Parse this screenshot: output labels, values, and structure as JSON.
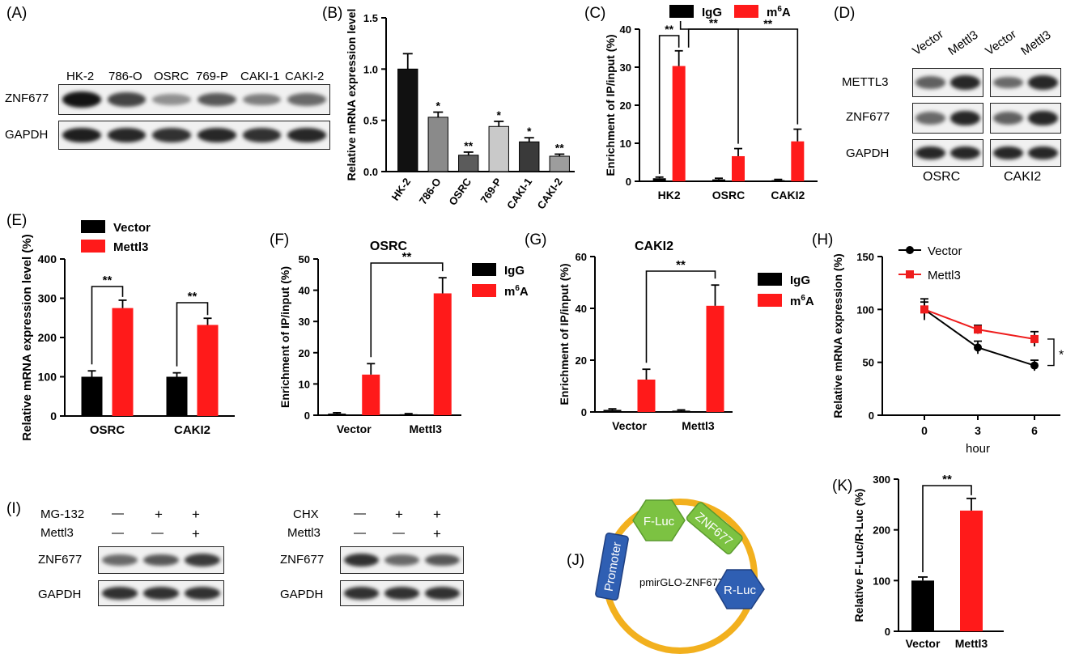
{
  "panels": [
    "(A)",
    "(B)",
    "(C)",
    "(D)",
    "(E)",
    "(F)",
    "(G)",
    "(H)",
    "(I)",
    "(J)",
    "(K)"
  ],
  "panelA": {
    "lanes": [
      "HK-2",
      "786-O",
      "OSRC",
      "769-P",
      "CAKI-1",
      "CAKI-2"
    ],
    "rows": [
      "ZNF677",
      "GAPDH"
    ],
    "znf677_intensity": [
      1.0,
      0.75,
      0.35,
      0.65,
      0.45,
      0.55
    ],
    "gapdh_intensity": [
      0.95,
      0.9,
      0.85,
      0.9,
      0.85,
      0.9
    ]
  },
  "panelD": {
    "lanes": [
      "Vector",
      "Mettl3",
      "Vector",
      "Mettl3"
    ],
    "rows": [
      "METTL3",
      "ZNF677",
      "GAPDH"
    ],
    "cells": [
      "OSRC",
      "CAKI2"
    ],
    "mettl3_intensity": [
      0.6,
      0.9,
      0.55,
      0.9
    ],
    "znf677_intensity": [
      0.55,
      0.9,
      0.6,
      0.9
    ],
    "gapdh_intensity": [
      0.9,
      0.9,
      0.9,
      0.9
    ]
  },
  "panelI": {
    "left_treat": "MG-132",
    "right_treat": "CHX",
    "second_treat": "Mettl3",
    "treat_signs": [
      "—",
      "+",
      "+"
    ],
    "mettl3_signs": [
      "—",
      "—",
      "+"
    ],
    "rows": [
      "ZNF677",
      "GAPDH"
    ],
    "left_znf677_intensity": [
      0.55,
      0.65,
      0.8
    ],
    "right_znf677_intensity": [
      0.85,
      0.55,
      0.65
    ],
    "gapdh_intensity": [
      0.85,
      0.85,
      0.85
    ]
  },
  "panelJ": {
    "plasmid": "pmirGLO-ZNF677",
    "elements": [
      "F-Luc",
      "ZNF677",
      "R-Luc",
      "Promoter"
    ],
    "colors": {
      "ring": "#f2b01e",
      "fluc": "#7cc242",
      "rluc": "#2f5fb3"
    }
  },
  "chart_data": [
    {
      "panel": "(B)",
      "type": "bar",
      "categories": [
        "HK-2",
        "786-O",
        "OSRC",
        "769-P",
        "CAKI-1",
        "CAKI-2"
      ],
      "values": [
        1.0,
        0.53,
        0.16,
        0.44,
        0.29,
        0.15
      ],
      "errors": [
        0.15,
        0.05,
        0.03,
        0.05,
        0.04,
        0.02
      ],
      "colors": [
        "#111111",
        "#8a8a8a",
        "#5b5b5b",
        "#c9c9c9",
        "#3a3a3a",
        "#9d9d9d"
      ],
      "annotations": [
        "",
        "*",
        "**",
        "*",
        "*",
        "**"
      ],
      "ylabel": "Relative mRNA  expression level",
      "ylim": [
        0,
        1.5
      ],
      "yticks": [
        "0.0",
        "0.5",
        "1.0",
        "1.5"
      ]
    },
    {
      "panel": "(C)",
      "type": "bar",
      "categories": [
        "HK2",
        "OSRC",
        "CAKI2"
      ],
      "series": [
        {
          "name": "IgG",
          "values": [
            0.8,
            0.5,
            0.3
          ],
          "errors": [
            0.3,
            0.3,
            0.2
          ],
          "color": "#000000"
        },
        {
          "name": "m6A",
          "values": [
            30.3,
            6.6,
            10.5
          ],
          "errors": [
            4.0,
            2.0,
            3.2
          ],
          "color": "#ff1a1a"
        }
      ],
      "legend": [
        "IgG",
        "m",
        "6",
        "A"
      ],
      "sig": "**",
      "ylabel": "Enrichment of IP/input (%)",
      "ylim": [
        0,
        40
      ],
      "yticks": [
        "0",
        "10",
        "20",
        "30",
        "40"
      ]
    },
    {
      "panel": "(E)",
      "type": "bar",
      "categories": [
        "OSRC",
        "CAKI2"
      ],
      "series": [
        {
          "name": "Vector",
          "values": [
            100,
            100
          ],
          "errors": [
            15,
            10
          ],
          "color": "#000000"
        },
        {
          "name": "Mettl3",
          "values": [
            275,
            232
          ],
          "errors": [
            20,
            17
          ],
          "color": "#ff1a1a"
        }
      ],
      "legend": [
        "Vector",
        "Mettl3"
      ],
      "sig": "**",
      "ylabel": "Relative mRNA  expression level (%)",
      "ylim": [
        0,
        400
      ],
      "yticks": [
        "0",
        "100",
        "200",
        "300",
        "400"
      ]
    },
    {
      "panel": "(F)",
      "type": "bar",
      "title": "OSRC",
      "categories": [
        "Vector",
        "Mettl3"
      ],
      "series": [
        {
          "name": "IgG",
          "values": [
            0.5,
            0.3
          ],
          "errors": [
            0.3,
            0.2
          ],
          "color": "#000000"
        },
        {
          "name": "m6A",
          "values": [
            13,
            39
          ],
          "errors": [
            3.5,
            5
          ],
          "color": "#ff1a1a"
        }
      ],
      "legend": [
        "IgG",
        "m",
        "6",
        "A"
      ],
      "sig": "**",
      "ylabel": "Enrichment of IP/input (%)",
      "ylim": [
        0,
        50
      ],
      "yticks": [
        "0",
        "10",
        "20",
        "30",
        "40",
        "50"
      ]
    },
    {
      "panel": "(G)",
      "type": "bar",
      "title": "CAKI2",
      "categories": [
        "Vector",
        "Mettl3"
      ],
      "series": [
        {
          "name": "IgG",
          "values": [
            0.8,
            0.5
          ],
          "errors": [
            0.4,
            0.3
          ],
          "color": "#000000"
        },
        {
          "name": "m6A",
          "values": [
            12.5,
            41
          ],
          "errors": [
            4,
            8
          ],
          "color": "#ff1a1a"
        }
      ],
      "legend": [
        "IgG",
        "m",
        "6",
        "A"
      ],
      "sig": "**",
      "ylabel": "Enrichment of IP/input (%)",
      "ylim": [
        0,
        60
      ],
      "yticks": [
        "0",
        "20",
        "40",
        "60"
      ]
    },
    {
      "panel": "(H)",
      "type": "line",
      "x": [
        0,
        3,
        6
      ],
      "series": [
        {
          "name": "Vector",
          "values": [
            100,
            64,
            47
          ],
          "errors": [
            10,
            6,
            5
          ],
          "color": "#000000",
          "marker": "circle"
        },
        {
          "name": "Mettl3",
          "values": [
            100,
            81,
            72
          ],
          "errors": [
            7,
            4,
            7
          ],
          "color": "#ee1c1c",
          "marker": "square"
        }
      ],
      "legend": [
        "Vector",
        "Mettl3"
      ],
      "sig": "*",
      "xlabel": "hour",
      "xticks": [
        "0",
        "3",
        "6"
      ],
      "ylabel": "Relative mRNA  expression (%)",
      "ylim": [
        0,
        150
      ],
      "yticks": [
        "0",
        "50",
        "100",
        "150"
      ]
    },
    {
      "panel": "(K)",
      "type": "bar",
      "categories": [
        "Vector",
        "Mettl3"
      ],
      "values": [
        100,
        238
      ],
      "errors": [
        7,
        24
      ],
      "colors": [
        "#000000",
        "#ff1a1a"
      ],
      "sig": "**",
      "ylabel": "Relative F-Luc/R-Luc (%)",
      "ylim": [
        0,
        300
      ],
      "yticks": [
        "0",
        "100",
        "200",
        "300"
      ]
    }
  ]
}
